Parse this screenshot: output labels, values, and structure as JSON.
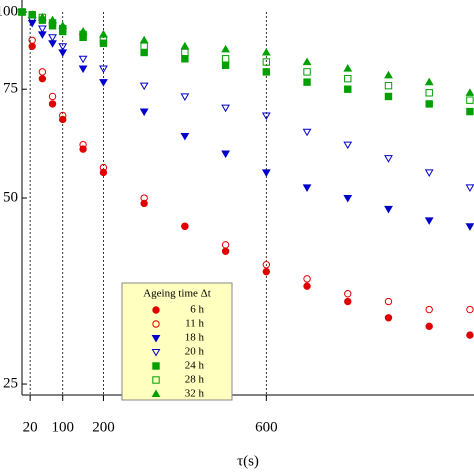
{
  "chart_data": {
    "type": "scatter",
    "xlabel": "τ(s)",
    "ylog": true,
    "x": [
      0,
      25,
      50,
      75,
      100,
      150,
      200,
      300,
      400,
      500,
      600,
      700,
      800,
      900,
      1000,
      1100
    ],
    "xlim": [
      0,
      1110
    ],
    "xticks": [
      20,
      100,
      200,
      600
    ],
    "ylim": [
      24,
      100
    ],
    "yticks": [
      25,
      50,
      75,
      100
    ],
    "legend_title": "Ageing time Δt",
    "series": [
      {
        "name": "6 h",
        "color": "#e00000",
        "marker": "circle",
        "values": [
          100,
          88,
          78,
          71,
          67,
          60,
          55,
          49,
          45,
          41,
          38,
          36,
          34,
          32,
          31,
          30
        ]
      },
      {
        "name": "11 h",
        "color": "#e00000",
        "marker": "circle-open",
        "values": [
          100,
          90,
          80,
          73,
          68,
          61,
          56,
          50,
          45,
          42,
          39,
          37,
          35,
          34,
          33,
          33
        ]
      },
      {
        "name": "18 h",
        "color": "#0000cc",
        "marker": "triangle-down",
        "values": [
          100,
          96,
          92,
          89,
          86,
          81,
          77,
          69,
          63,
          59,
          55,
          52,
          50,
          48,
          46,
          45
        ]
      },
      {
        "name": "20 h",
        "color": "#0000cc",
        "marker": "triangle-down-open",
        "values": [
          100,
          97,
          94,
          91,
          88,
          84,
          81,
          76,
          73,
          70,
          68,
          64,
          61,
          58,
          55,
          52
        ]
      },
      {
        "name": "24 h",
        "color": "#00a000",
        "marker": "square",
        "values": [
          100,
          99,
          97,
          95,
          93,
          91,
          89,
          86,
          84,
          82,
          80,
          77,
          75,
          73,
          71,
          69
        ]
      },
      {
        "name": "28 h",
        "color": "#00a000",
        "marker": "square-open",
        "values": [
          100,
          99,
          98,
          96,
          94,
          92,
          90,
          88,
          86,
          84,
          83,
          80,
          78,
          76,
          74,
          72
        ]
      },
      {
        "name": "32 h",
        "color": "#00a000",
        "marker": "triangle",
        "values": [
          100,
          99,
          98,
          97,
          95,
          93,
          92,
          90,
          88,
          87,
          86,
          83,
          81,
          79,
          77,
          74
        ]
      }
    ]
  }
}
